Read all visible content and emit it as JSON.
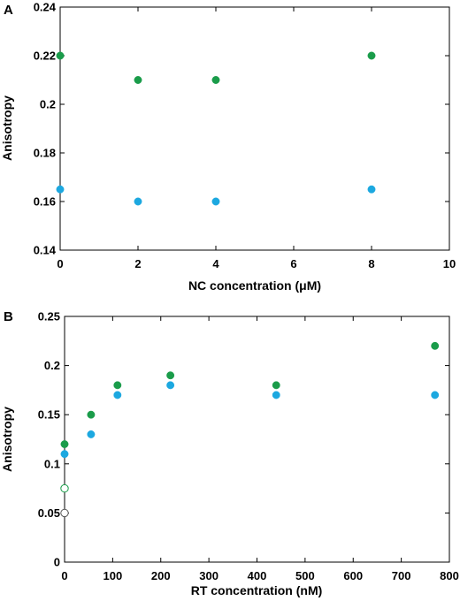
{
  "chart_data": [
    {
      "type": "scatter",
      "panel_label": "A",
      "title": "",
      "xlabel": "NC concentration (μM)",
      "ylabel": "Anisotropy",
      "xlim": [
        0,
        10
      ],
      "ylim": [
        0.14,
        0.24
      ],
      "xticks": [
        0,
        2,
        4,
        6,
        8,
        10
      ],
      "xtick_labels": [
        "0",
        "2",
        "4",
        "6",
        "8",
        "10"
      ],
      "yticks": [
        0.14,
        0.16,
        0.18,
        0.2,
        0.22,
        0.24
      ],
      "ytick_labels": [
        "0.14",
        "0.16",
        "0.18",
        "0.2",
        "0.22",
        "0.24"
      ],
      "grid": false,
      "series": [
        {
          "color": "#1a9c4a",
          "fill": "solid",
          "points": [
            {
              "x": 0,
              "y": 0.22
            },
            {
              "x": 2,
              "y": 0.21
            },
            {
              "x": 4,
              "y": 0.21
            },
            {
              "x": 8,
              "y": 0.22
            }
          ]
        },
        {
          "color": "#1ca8e0",
          "fill": "solid",
          "points": [
            {
              "x": 0,
              "y": 0.165
            },
            {
              "x": 2,
              "y": 0.16
            },
            {
              "x": 4,
              "y": 0.16
            },
            {
              "x": 8,
              "y": 0.165
            }
          ]
        }
      ]
    },
    {
      "type": "scatter",
      "panel_label": "B",
      "title": "",
      "xlabel": "RT concentration (nM)",
      "ylabel": "Anisotropy",
      "xlim": [
        0,
        800
      ],
      "ylim": [
        0,
        0.25
      ],
      "xticks": [
        0,
        100,
        200,
        300,
        400,
        500,
        600,
        700,
        800
      ],
      "xtick_labels": [
        "0",
        "100",
        "200",
        "300",
        "400",
        "500",
        "600",
        "700",
        "800"
      ],
      "yticks": [
        0,
        0.05,
        0.1,
        0.15,
        0.2,
        0.25
      ],
      "ytick_labels": [
        "0",
        "0.05",
        "0.1",
        "0.15",
        "0.2",
        "0.25"
      ],
      "grid": false,
      "series": [
        {
          "color": "#1a9c4a",
          "fill": "solid",
          "points": [
            {
              "x": 0,
              "y": 0.12
            },
            {
              "x": 55,
              "y": 0.15
            },
            {
              "x": 110,
              "y": 0.18
            },
            {
              "x": 220,
              "y": 0.19
            },
            {
              "x": 440,
              "y": 0.18
            },
            {
              "x": 770,
              "y": 0.22
            }
          ]
        },
        {
          "color": "#1ca8e0",
          "fill": "solid",
          "points": [
            {
              "x": 0,
              "y": 0.11
            },
            {
              "x": 55,
              "y": 0.13
            },
            {
              "x": 110,
              "y": 0.17
            },
            {
              "x": 220,
              "y": 0.18
            },
            {
              "x": 440,
              "y": 0.17
            },
            {
              "x": 770,
              "y": 0.17
            }
          ]
        },
        {
          "color": "#1a9c4a",
          "fill": "open",
          "points": [
            {
              "x": 0,
              "y": 0.075
            }
          ]
        },
        {
          "color": "#555555",
          "fill": "open",
          "points": [
            {
              "x": 0,
              "y": 0.05
            }
          ]
        }
      ]
    }
  ]
}
